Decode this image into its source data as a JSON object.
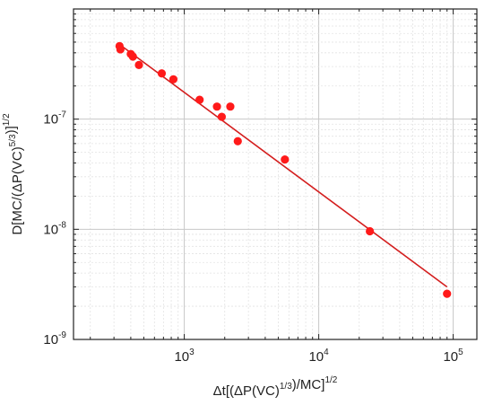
{
  "chart_data": {
    "type": "scatter",
    "x_scale": "log",
    "y_scale": "log",
    "xlim": [
      150,
      150000
    ],
    "ylim": [
      1e-09,
      1e-06
    ],
    "grid": true,
    "xlabel": "Δt[(ΔP(VC)^(1/3))/MC]^(1/2)",
    "ylabel": "D[MC/(ΔP(VC)^(5/3))]^(1/2)",
    "x_ticks": [
      {
        "value": 1000,
        "base": "10",
        "exp": "3"
      },
      {
        "value": 10000,
        "base": "10",
        "exp": "4"
      },
      {
        "value": 100000,
        "base": "10",
        "exp": "5"
      }
    ],
    "y_ticks": [
      {
        "value": 1e-09,
        "base": "10",
        "exp": "-9"
      },
      {
        "value": 1e-08,
        "base": "10",
        "exp": "-8"
      },
      {
        "value": 1e-07,
        "base": "10",
        "exp": "-7"
      }
    ],
    "series": [
      {
        "marker_color": "#ff1a1a",
        "points": [
          {
            "x": 330,
            "y": 4.6e-07
          },
          {
            "x": 335,
            "y": 4.3e-07
          },
          {
            "x": 400,
            "y": 3.9e-07
          },
          {
            "x": 415,
            "y": 3.7e-07
          },
          {
            "x": 460,
            "y": 3.1e-07
          },
          {
            "x": 680,
            "y": 2.6e-07
          },
          {
            "x": 830,
            "y": 2.3e-07
          },
          {
            "x": 1300,
            "y": 1.5e-07
          },
          {
            "x": 1750,
            "y": 1.3e-07
          },
          {
            "x": 1900,
            "y": 1.05e-07
          },
          {
            "x": 2200,
            "y": 1.3e-07
          },
          {
            "x": 2500,
            "y": 6.3e-08
          },
          {
            "x": 5600,
            "y": 4.3e-08
          },
          {
            "x": 24000,
            "y": 9.6e-09
          },
          {
            "x": 90000,
            "y": 2.6e-09
          }
        ]
      }
    ],
    "fit_line": {
      "color": "#d41e1e",
      "points": [
        {
          "x": 320,
          "y": 4.9e-07
        },
        {
          "x": 90000,
          "y": 3e-09
        }
      ]
    }
  }
}
